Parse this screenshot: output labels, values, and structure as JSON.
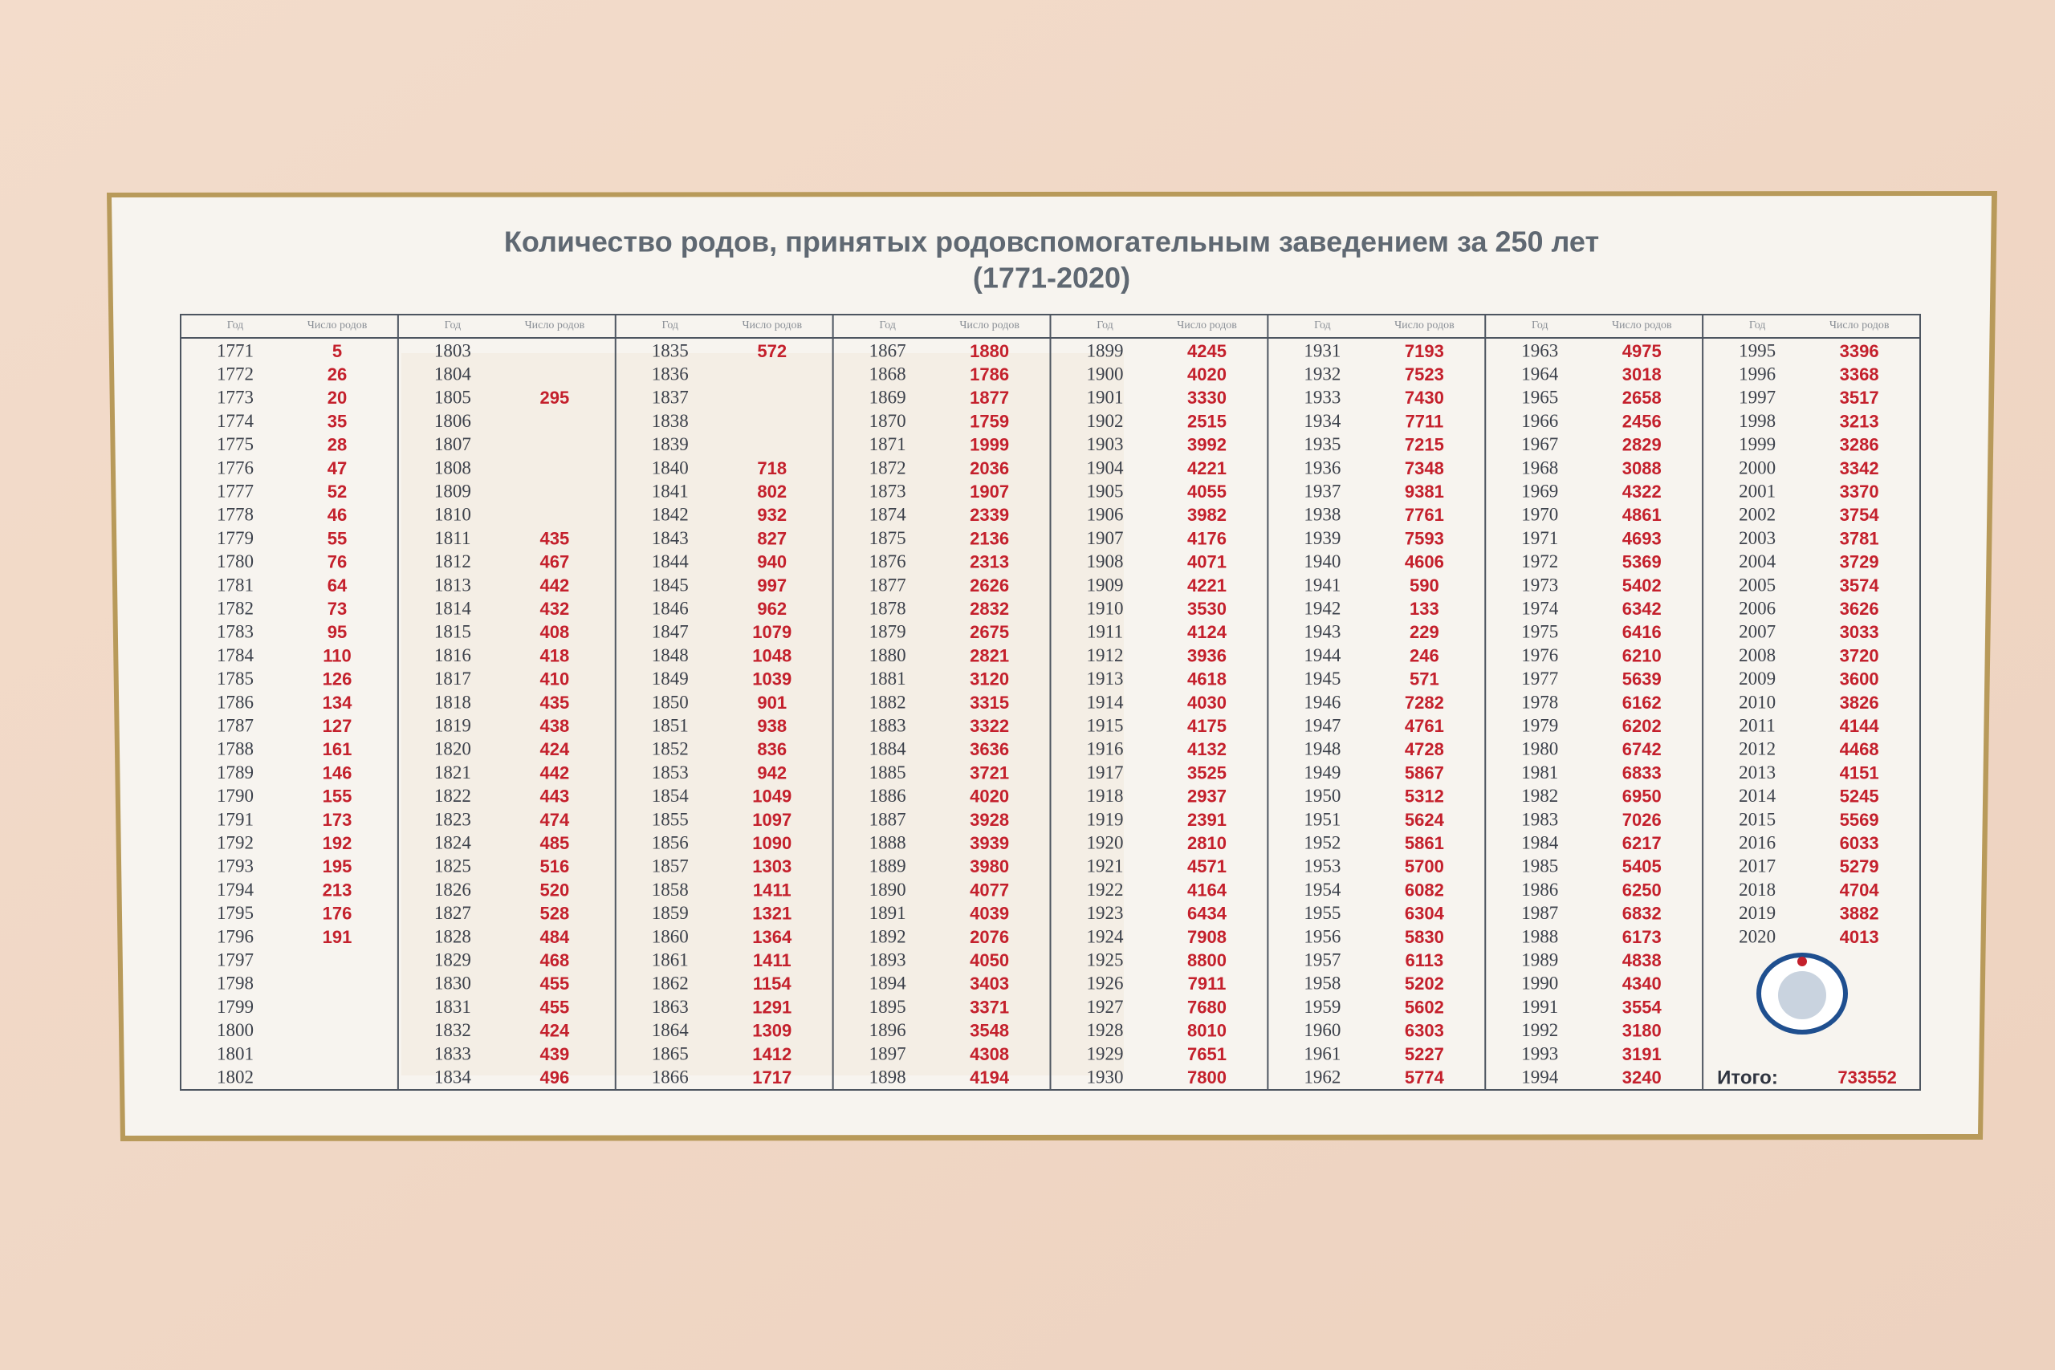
{
  "title": "Количество родов, принятых родовспомогательным заведением за 250 лет",
  "subtitle": "(1771-2020)",
  "table": {
    "header": [
      "Год",
      "Число родов"
    ],
    "columns": [
      {
        "rows": [
          [
            1771,
            5
          ],
          [
            1772,
            26
          ],
          [
            1773,
            20
          ],
          [
            1774,
            35
          ],
          [
            1775,
            28
          ],
          [
            1776,
            47
          ],
          [
            1777,
            52
          ],
          [
            1778,
            46
          ],
          [
            1779,
            55
          ],
          [
            1780,
            76
          ],
          [
            1781,
            64
          ],
          [
            1782,
            73
          ],
          [
            1783,
            95
          ],
          [
            1784,
            110
          ],
          [
            1785,
            126
          ],
          [
            1786,
            134
          ],
          [
            1787,
            127
          ],
          [
            1788,
            161
          ],
          [
            1789,
            146
          ],
          [
            1790,
            155
          ],
          [
            1791,
            173
          ],
          [
            1792,
            192
          ],
          [
            1793,
            195
          ],
          [
            1794,
            213
          ],
          [
            1795,
            176
          ],
          [
            1796,
            191
          ],
          [
            1797,
            null
          ],
          [
            1798,
            null
          ],
          [
            1799,
            null
          ],
          [
            1800,
            null
          ],
          [
            1801,
            null
          ],
          [
            1802,
            null
          ]
        ]
      },
      {
        "rows": [
          [
            1803,
            null
          ],
          [
            1804,
            null
          ],
          [
            1805,
            295
          ],
          [
            1806,
            null
          ],
          [
            1807,
            null
          ],
          [
            1808,
            null
          ],
          [
            1809,
            null
          ],
          [
            1810,
            null
          ],
          [
            1811,
            435
          ],
          [
            1812,
            467
          ],
          [
            1813,
            442
          ],
          [
            1814,
            432
          ],
          [
            1815,
            408
          ],
          [
            1816,
            418
          ],
          [
            1817,
            410
          ],
          [
            1818,
            435
          ],
          [
            1819,
            438
          ],
          [
            1820,
            424
          ],
          [
            1821,
            442
          ],
          [
            1822,
            443
          ],
          [
            1823,
            474
          ],
          [
            1824,
            485
          ],
          [
            1825,
            516
          ],
          [
            1826,
            520
          ],
          [
            1827,
            528
          ],
          [
            1828,
            484
          ],
          [
            1829,
            468
          ],
          [
            1830,
            455
          ],
          [
            1831,
            455
          ],
          [
            1832,
            424
          ],
          [
            1833,
            439
          ],
          [
            1834,
            496
          ]
        ]
      },
      {
        "rows": [
          [
            1835,
            572
          ],
          [
            1836,
            null
          ],
          [
            1837,
            null
          ],
          [
            1838,
            null
          ],
          [
            1839,
            null
          ],
          [
            1840,
            718
          ],
          [
            1841,
            802
          ],
          [
            1842,
            932
          ],
          [
            1843,
            827
          ],
          [
            1844,
            940
          ],
          [
            1845,
            997
          ],
          [
            1846,
            962
          ],
          [
            1847,
            1079
          ],
          [
            1848,
            1048
          ],
          [
            1849,
            1039
          ],
          [
            1850,
            901
          ],
          [
            1851,
            938
          ],
          [
            1852,
            836
          ],
          [
            1853,
            942
          ],
          [
            1854,
            1049
          ],
          [
            1855,
            1097
          ],
          [
            1856,
            1090
          ],
          [
            1857,
            1303
          ],
          [
            1858,
            1411
          ],
          [
            1859,
            1321
          ],
          [
            1860,
            1364
          ],
          [
            1861,
            1411
          ],
          [
            1862,
            1154
          ],
          [
            1863,
            1291
          ],
          [
            1864,
            1309
          ],
          [
            1865,
            1412
          ],
          [
            1866,
            1717
          ]
        ]
      },
      {
        "rows": [
          [
            1867,
            1880
          ],
          [
            1868,
            1786
          ],
          [
            1869,
            1877
          ],
          [
            1870,
            1759
          ],
          [
            1871,
            1999
          ],
          [
            1872,
            2036
          ],
          [
            1873,
            1907
          ],
          [
            1874,
            2339
          ],
          [
            1875,
            2136
          ],
          [
            1876,
            2313
          ],
          [
            1877,
            2626
          ],
          [
            1878,
            2832
          ],
          [
            1879,
            2675
          ],
          [
            1880,
            2821
          ],
          [
            1881,
            3120
          ],
          [
            1882,
            3315
          ],
          [
            1883,
            3322
          ],
          [
            1884,
            3636
          ],
          [
            1885,
            3721
          ],
          [
            1886,
            4020
          ],
          [
            1887,
            3928
          ],
          [
            1888,
            3939
          ],
          [
            1889,
            3980
          ],
          [
            1890,
            4077
          ],
          [
            1891,
            4039
          ],
          [
            1892,
            2076
          ],
          [
            1893,
            4050
          ],
          [
            1894,
            3403
          ],
          [
            1895,
            3371
          ],
          [
            1896,
            3548
          ],
          [
            1897,
            4308
          ],
          [
            1898,
            4194
          ]
        ]
      },
      {
        "rows": [
          [
            1899,
            4245
          ],
          [
            1900,
            4020
          ],
          [
            1901,
            3330
          ],
          [
            1902,
            2515
          ],
          [
            1903,
            3992
          ],
          [
            1904,
            4221
          ],
          [
            1905,
            4055
          ],
          [
            1906,
            3982
          ],
          [
            1907,
            4176
          ],
          [
            1908,
            4071
          ],
          [
            1909,
            4221
          ],
          [
            1910,
            3530
          ],
          [
            1911,
            4124
          ],
          [
            1912,
            3936
          ],
          [
            1913,
            4618
          ],
          [
            1914,
            4030
          ],
          [
            1915,
            4175
          ],
          [
            1916,
            4132
          ],
          [
            1917,
            3525
          ],
          [
            1918,
            2937
          ],
          [
            1919,
            2391
          ],
          [
            1920,
            2810
          ],
          [
            1921,
            4571
          ],
          [
            1922,
            4164
          ],
          [
            1923,
            6434
          ],
          [
            1924,
            7908
          ],
          [
            1925,
            8800
          ],
          [
            1926,
            7911
          ],
          [
            1927,
            7680
          ],
          [
            1928,
            8010
          ],
          [
            1929,
            7651
          ],
          [
            1930,
            7800
          ]
        ]
      },
      {
        "rows": [
          [
            1931,
            7193
          ],
          [
            1932,
            7523
          ],
          [
            1933,
            7430
          ],
          [
            1934,
            7711
          ],
          [
            1935,
            7215
          ],
          [
            1936,
            7348
          ],
          [
            1937,
            9381
          ],
          [
            1938,
            7761
          ],
          [
            1939,
            7593
          ],
          [
            1940,
            4606
          ],
          [
            1941,
            590
          ],
          [
            1942,
            133
          ],
          [
            1943,
            229
          ],
          [
            1944,
            246
          ],
          [
            1945,
            571
          ],
          [
            1946,
            7282
          ],
          [
            1947,
            4761
          ],
          [
            1948,
            4728
          ],
          [
            1949,
            5867
          ],
          [
            1950,
            5312
          ],
          [
            1951,
            5624
          ],
          [
            1952,
            5861
          ],
          [
            1953,
            5700
          ],
          [
            1954,
            6082
          ],
          [
            1955,
            6304
          ],
          [
            1956,
            5830
          ],
          [
            1957,
            6113
          ],
          [
            1958,
            5202
          ],
          [
            1959,
            5602
          ],
          [
            1960,
            6303
          ],
          [
            1961,
            5227
          ],
          [
            1962,
            5774
          ]
        ]
      },
      {
        "rows": [
          [
            1963,
            4975
          ],
          [
            1964,
            3018
          ],
          [
            1965,
            2658
          ],
          [
            1966,
            2456
          ],
          [
            1967,
            2829
          ],
          [
            1968,
            3088
          ],
          [
            1969,
            4322
          ],
          [
            1970,
            4861
          ],
          [
            1971,
            4693
          ],
          [
            1972,
            5369
          ],
          [
            1973,
            5402
          ],
          [
            1974,
            6342
          ],
          [
            1975,
            6416
          ],
          [
            1976,
            6210
          ],
          [
            1977,
            5639
          ],
          [
            1978,
            6162
          ],
          [
            1979,
            6202
          ],
          [
            1980,
            6742
          ],
          [
            1981,
            6833
          ],
          [
            1982,
            6950
          ],
          [
            1983,
            7026
          ],
          [
            1984,
            6217
          ],
          [
            1985,
            5405
          ],
          [
            1986,
            6250
          ],
          [
            1987,
            6832
          ],
          [
            1988,
            6173
          ],
          [
            1989,
            4838
          ],
          [
            1990,
            4340
          ],
          [
            1991,
            3554
          ],
          [
            1992,
            3180
          ],
          [
            1993,
            3191
          ],
          [
            1994,
            3240
          ]
        ]
      },
      {
        "rows": [
          [
            1995,
            3396
          ],
          [
            1996,
            3368
          ],
          [
            1997,
            3517
          ],
          [
            1998,
            3213
          ],
          [
            1999,
            3286
          ],
          [
            2000,
            3342
          ],
          [
            2001,
            3370
          ],
          [
            2002,
            3754
          ],
          [
            2003,
            3781
          ],
          [
            2004,
            3729
          ],
          [
            2005,
            3574
          ],
          [
            2006,
            3626
          ],
          [
            2007,
            3033
          ],
          [
            2008,
            3720
          ],
          [
            2009,
            3600
          ],
          [
            2010,
            3826
          ],
          [
            2011,
            4144
          ],
          [
            2012,
            4468
          ],
          [
            2013,
            4151
          ],
          [
            2014,
            5245
          ],
          [
            2015,
            5569
          ],
          [
            2016,
            6033
          ],
          [
            2017,
            5279
          ],
          [
            2018,
            4704
          ],
          [
            2019,
            3882
          ],
          [
            2020,
            4013
          ]
        ]
      }
    ]
  },
  "total": {
    "label": "Итого:",
    "value": 733552
  }
}
